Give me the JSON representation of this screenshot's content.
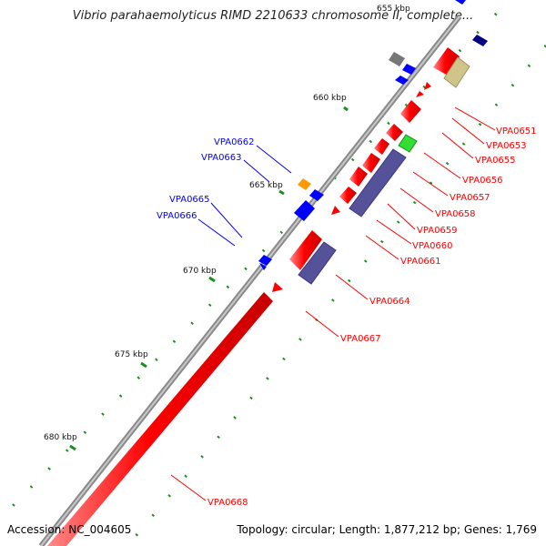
{
  "title": "Vibrio parahaemolyticus RIMD 2210633 chromosome II, complete...",
  "accession": "Accession: NC_004605",
  "summary": "Topology: circular; Length: 1,877,212 bp; Genes: 1,769",
  "colors": {
    "backbone": "#8a8a8a",
    "forward_red": "#ff0000",
    "reverse_blue": "#0000ff",
    "purple": "#55529a",
    "olive": "#cfc48a",
    "green": "#33dd33",
    "orange": "#ff9900",
    "gray": "#777777",
    "navy": "#000080",
    "tick_green": "#1b8f1b"
  },
  "scale_labels": [
    "655 kbp",
    "660 kbp",
    "665 kbp",
    "670 kbp",
    "675 kbp",
    "680 kbp"
  ],
  "gene_labels_right": [
    "VPA0651",
    "VPA0653",
    "VPA0655",
    "VPA0656",
    "VPA0657",
    "VPA0658",
    "VPA0659",
    "VPA0660",
    "VPA0661",
    "VPA0664",
    "VPA0667",
    "VPA0668"
  ],
  "gene_labels_left": [
    "VPA0662",
    "VPA0663",
    "VPA0665",
    "VPA0666"
  ]
}
